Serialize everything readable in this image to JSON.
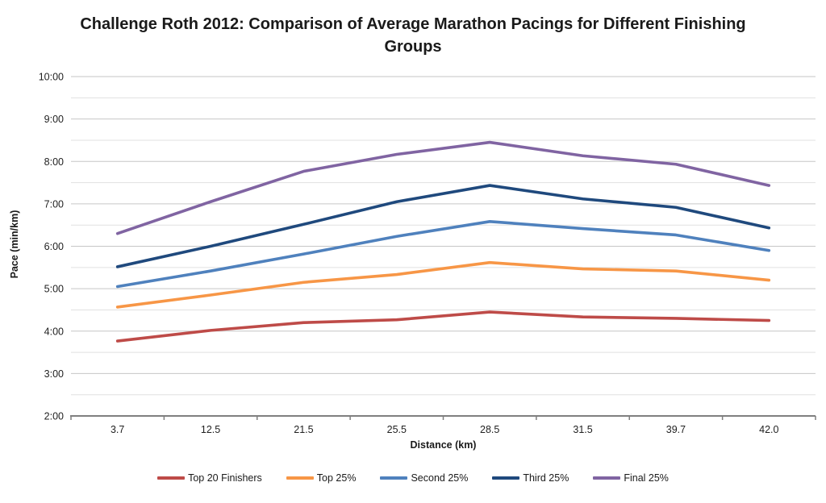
{
  "title": "Challenge Roth 2012: Comparison of Average Marathon Pacings for Different Finishing Groups",
  "chart_data": {
    "type": "line",
    "title": "Challenge Roth 2012: Comparison of Average Marathon Pacings for Different Finishing Groups",
    "xlabel": "Distance (km)",
    "ylabel": "Pace (min/km)",
    "categories": [
      "3.7",
      "12.5",
      "21.5",
      "25.5",
      "28.5",
      "31.5",
      "39.7",
      "42.0"
    ],
    "y_axis": {
      "min": "2:00",
      "max": "10:00",
      "major_tick": "1:00",
      "minor_tick": "0:30",
      "tick_labels": [
        "2:00",
        "3:00",
        "4:00",
        "5:00",
        "6:00",
        "7:00",
        "8:00",
        "9:00",
        "10:00"
      ]
    },
    "series": [
      {
        "name": "Top 20 Finishers",
        "color": "#BE4B48",
        "values": [
          "3:46",
          "4:01",
          "4:12",
          "4:16",
          "4:27",
          "4:20",
          "4:18",
          "4:15"
        ]
      },
      {
        "name": "Top 25%",
        "color": "#F79646",
        "values": [
          "4:34",
          "4:51",
          "5:09",
          "5:20",
          "5:37",
          "5:28",
          "5:25",
          "5:12"
        ]
      },
      {
        "name": "Second 25%",
        "color": "#4F81BD",
        "values": [
          "5:03",
          "5:25",
          "5:49",
          "6:14",
          "6:35",
          "6:25",
          "6:16",
          "5:54"
        ]
      },
      {
        "name": "Third 25%",
        "color": "#1F497D",
        "values": [
          "5:31",
          "6:00",
          "6:31",
          "7:03",
          "7:26",
          "7:07",
          "6:55",
          "6:26"
        ]
      },
      {
        "name": "Final 25%",
        "color": "#8064A2",
        "values": [
          "6:18",
          "7:03",
          "7:46",
          "8:10",
          "8:27",
          "8:08",
          "7:56",
          "7:26"
        ]
      }
    ],
    "legend_position": "bottom",
    "grid": true
  },
  "style": {
    "major_grid_color": "#C6C6C6",
    "minor_grid_color": "#E1E1E1",
    "axis_color": "#7F7F7F",
    "background": "#FFFFFF"
  }
}
